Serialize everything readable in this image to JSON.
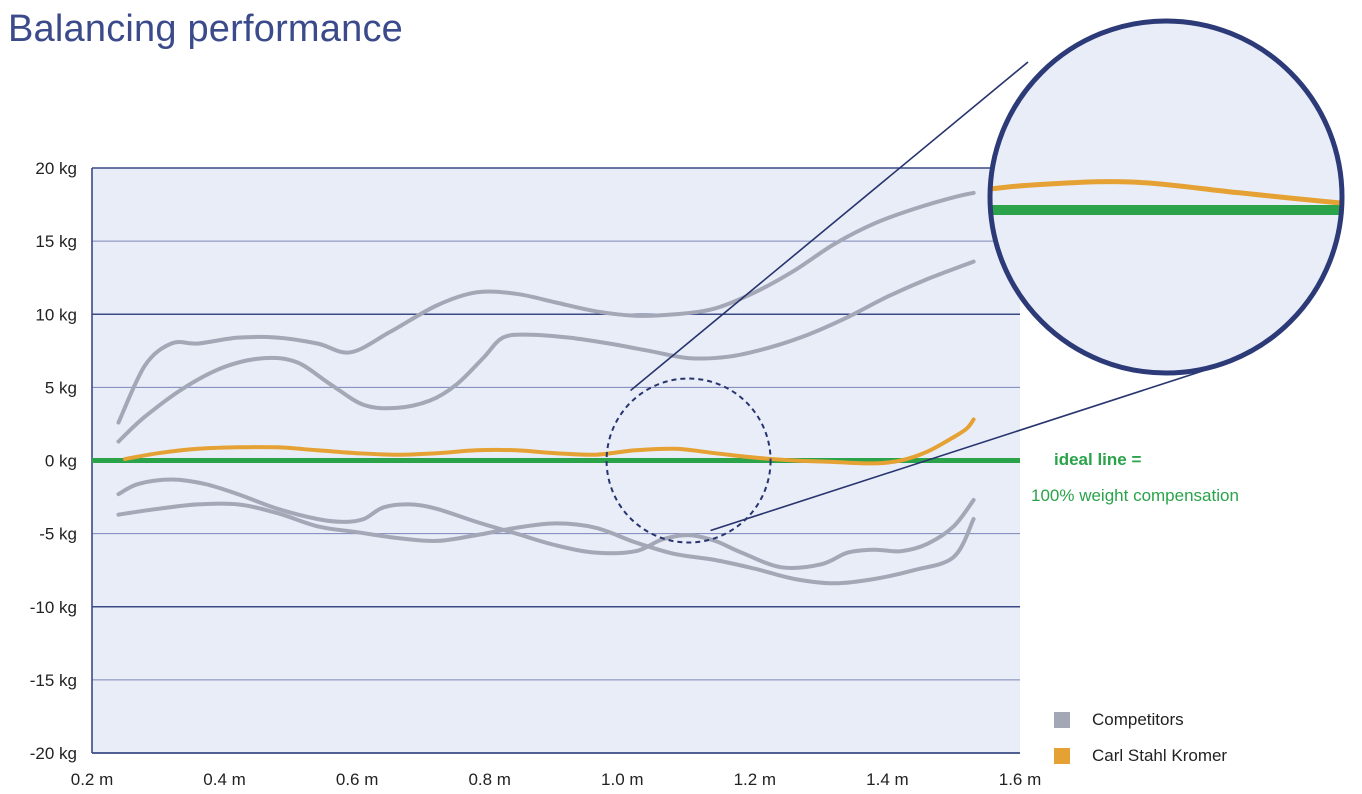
{
  "title": "Balancing performance",
  "chart_data": {
    "type": "line",
    "title": "Balancing performance",
    "xlabel": "",
    "ylabel": "",
    "xlim": [
      0.2,
      1.6
    ],
    "ylim": [
      -20,
      20
    ],
    "x_ticks": [
      "0.2 m",
      "0.4 m",
      "0.6 m",
      "0.8 m",
      "1.0 m",
      "1.2 m",
      "1.4 m",
      "1.6 m"
    ],
    "y_ticks": [
      "20 kg",
      "15 kg",
      "10 kg",
      "5 kg",
      "0 kg",
      "-5 kg",
      "-10 kg",
      "-15 kg",
      "-20 kg"
    ],
    "grid": true,
    "legend_position": "bottom-right",
    "ideal_line": {
      "y": 0,
      "color": "#2aa34a"
    },
    "annotation": {
      "bold": "ideal line =",
      "text": "100% weight compensation"
    },
    "series": [
      {
        "group": "Competitors",
        "color": "#a4a7b6",
        "points": [
          [
            0.24,
            2.6
          ],
          [
            0.28,
            6.5
          ],
          [
            0.32,
            8.0
          ],
          [
            0.36,
            8.0
          ],
          [
            0.42,
            8.4
          ],
          [
            0.48,
            8.4
          ],
          [
            0.54,
            8.0
          ],
          [
            0.59,
            7.4
          ],
          [
            0.65,
            8.8
          ],
          [
            0.72,
            10.6
          ],
          [
            0.78,
            11.5
          ],
          [
            0.84,
            11.4
          ],
          [
            0.9,
            10.8
          ],
          [
            0.96,
            10.2
          ],
          [
            1.02,
            9.9
          ],
          [
            1.08,
            10.0
          ],
          [
            1.14,
            10.4
          ],
          [
            1.2,
            11.5
          ],
          [
            1.26,
            13.0
          ],
          [
            1.32,
            14.8
          ],
          [
            1.38,
            16.2
          ],
          [
            1.44,
            17.2
          ],
          [
            1.5,
            18.0
          ],
          [
            1.53,
            18.3
          ]
        ]
      },
      {
        "group": "Competitors",
        "color": "#a4a7b6",
        "points": [
          [
            0.24,
            1.3
          ],
          [
            0.28,
            3.0
          ],
          [
            0.34,
            5.0
          ],
          [
            0.4,
            6.4
          ],
          [
            0.46,
            7.0
          ],
          [
            0.51,
            6.7
          ],
          [
            0.56,
            5.2
          ],
          [
            0.61,
            3.8
          ],
          [
            0.66,
            3.6
          ],
          [
            0.71,
            4.1
          ],
          [
            0.75,
            5.2
          ],
          [
            0.79,
            7.0
          ],
          [
            0.82,
            8.4
          ],
          [
            0.86,
            8.6
          ],
          [
            0.92,
            8.4
          ],
          [
            0.98,
            8.0
          ],
          [
            1.04,
            7.5
          ],
          [
            1.1,
            7.0
          ],
          [
            1.16,
            7.1
          ],
          [
            1.22,
            7.7
          ],
          [
            1.28,
            8.6
          ],
          [
            1.34,
            9.8
          ],
          [
            1.4,
            11.2
          ],
          [
            1.46,
            12.4
          ],
          [
            1.53,
            13.6
          ]
        ]
      },
      {
        "group": "Competitors",
        "color": "#a4a7b6",
        "points": [
          [
            0.24,
            -2.3
          ],
          [
            0.27,
            -1.6
          ],
          [
            0.32,
            -1.3
          ],
          [
            0.37,
            -1.6
          ],
          [
            0.42,
            -2.3
          ],
          [
            0.48,
            -3.3
          ],
          [
            0.54,
            -4.0
          ],
          [
            0.58,
            -4.2
          ],
          [
            0.61,
            -4.0
          ],
          [
            0.64,
            -3.2
          ],
          [
            0.68,
            -3.0
          ],
          [
            0.72,
            -3.3
          ],
          [
            0.78,
            -4.2
          ],
          [
            0.84,
            -5.0
          ],
          [
            0.9,
            -5.8
          ],
          [
            0.96,
            -6.3
          ],
          [
            1.02,
            -6.2
          ],
          [
            1.06,
            -5.4
          ],
          [
            1.1,
            -5.1
          ],
          [
            1.14,
            -5.5
          ],
          [
            1.18,
            -6.3
          ],
          [
            1.24,
            -7.3
          ],
          [
            1.3,
            -7.1
          ],
          [
            1.34,
            -6.3
          ],
          [
            1.38,
            -6.1
          ],
          [
            1.42,
            -6.2
          ],
          [
            1.46,
            -5.7
          ],
          [
            1.5,
            -4.5
          ],
          [
            1.53,
            -2.7
          ]
        ]
      },
      {
        "group": "Competitors",
        "color": "#a4a7b6",
        "points": [
          [
            0.24,
            -3.7
          ],
          [
            0.3,
            -3.3
          ],
          [
            0.36,
            -3.0
          ],
          [
            0.42,
            -3.0
          ],
          [
            0.48,
            -3.6
          ],
          [
            0.54,
            -4.5
          ],
          [
            0.6,
            -4.9
          ],
          [
            0.66,
            -5.3
          ],
          [
            0.72,
            -5.5
          ],
          [
            0.78,
            -5.1
          ],
          [
            0.84,
            -4.6
          ],
          [
            0.9,
            -4.3
          ],
          [
            0.96,
            -4.6
          ],
          [
            1.02,
            -5.6
          ],
          [
            1.08,
            -6.4
          ],
          [
            1.14,
            -6.8
          ],
          [
            1.2,
            -7.4
          ],
          [
            1.26,
            -8.1
          ],
          [
            1.32,
            -8.4
          ],
          [
            1.38,
            -8.1
          ],
          [
            1.44,
            -7.5
          ],
          [
            1.5,
            -6.6
          ],
          [
            1.53,
            -4.0
          ]
        ]
      },
      {
        "group": "Carl Stahl Kromer",
        "color": "#e5a133",
        "points": [
          [
            0.25,
            0.1
          ],
          [
            0.3,
            0.5
          ],
          [
            0.36,
            0.8
          ],
          [
            0.42,
            0.9
          ],
          [
            0.48,
            0.9
          ],
          [
            0.54,
            0.7
          ],
          [
            0.6,
            0.5
          ],
          [
            0.66,
            0.4
          ],
          [
            0.72,
            0.5
          ],
          [
            0.78,
            0.7
          ],
          [
            0.84,
            0.7
          ],
          [
            0.9,
            0.5
          ],
          [
            0.96,
            0.4
          ],
          [
            1.02,
            0.7
          ],
          [
            1.08,
            0.8
          ],
          [
            1.14,
            0.5
          ],
          [
            1.2,
            0.2
          ],
          [
            1.26,
            0.0
          ],
          [
            1.32,
            -0.1
          ],
          [
            1.38,
            -0.2
          ],
          [
            1.42,
            0.0
          ],
          [
            1.46,
            0.6
          ],
          [
            1.5,
            1.6
          ],
          [
            1.52,
            2.2
          ],
          [
            1.53,
            2.8
          ]
        ]
      }
    ],
    "legend": [
      {
        "label": "Competitors",
        "color": "#a4a7b6"
      },
      {
        "label": "Carl Stahl Kromer",
        "color": "#e5a133"
      }
    ]
  }
}
